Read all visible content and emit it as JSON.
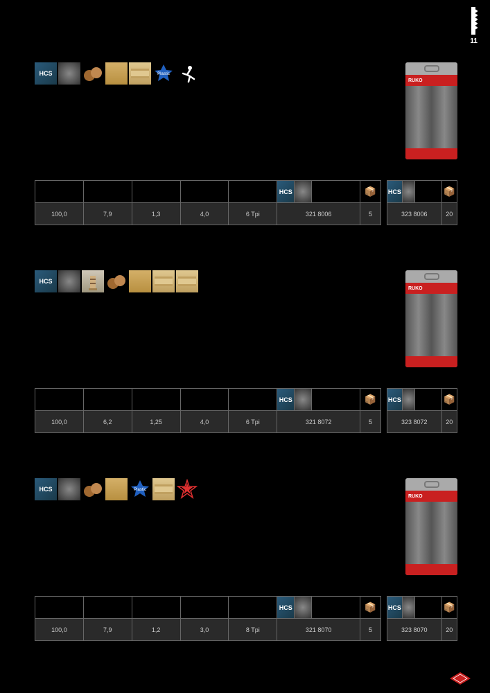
{
  "page_number": "11",
  "hcs_label": "HCS",
  "brand_label": "RUKO",
  "plastic_label": "Plastic",
  "box_glyph": "📦",
  "colors": {
    "hcs_bg": "#1e4a64",
    "red": "#c92020",
    "row_bg": "#2a2a2a",
    "border": "#666666"
  },
  "sections": [
    {
      "icons": [
        "hcs",
        "metal",
        "wood",
        "particle",
        "plywood",
        "plastic",
        "runner"
      ],
      "main_row": [
        "100,0",
        "7,9",
        "1,3",
        "4,0",
        "6 Tpi",
        "321 8006",
        "5"
      ],
      "side_row": [
        "323 8006",
        "20"
      ]
    },
    {
      "icons": [
        "hcs",
        "metal",
        "lighthouse",
        "wood",
        "particle",
        "plywood",
        "plywood2"
      ],
      "main_row": [
        "100,0",
        "6,2",
        "1,25",
        "4,0",
        "6 Tpi",
        "321 8072",
        "5"
      ],
      "side_row": [
        "323 8072",
        "20"
      ]
    },
    {
      "icons": [
        "hcs",
        "metal",
        "wood",
        "particle",
        "plastic",
        "plywood",
        "redstar"
      ],
      "main_row": [
        "100,0",
        "7,9",
        "1,2",
        "3,0",
        "8 Tpi",
        "321 8070",
        "5"
      ],
      "side_row": [
        "323 8070",
        "20"
      ]
    }
  ]
}
